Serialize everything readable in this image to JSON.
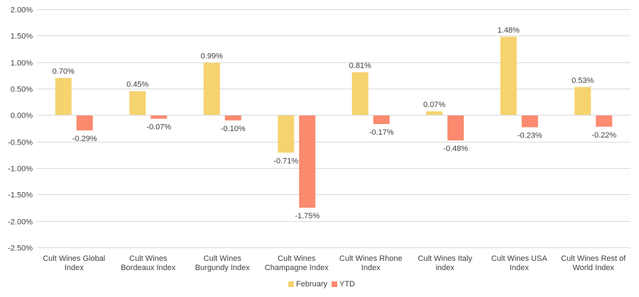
{
  "chart_data": {
    "type": "bar",
    "categories": [
      [
        "Cult Wines Global",
        "Index"
      ],
      [
        "Cult Wines",
        "Bordeaux Index"
      ],
      [
        "Cult Wines",
        "Burgundy Index"
      ],
      [
        "Cult Wines",
        "Champagne Index"
      ],
      [
        "Cult Wines Rhone",
        "Index"
      ],
      [
        "Cult Wines Italy",
        "index"
      ],
      [
        "Cult Wines USA",
        "Index"
      ],
      [
        "Cult Wines Rest of",
        "World Index"
      ]
    ],
    "series": [
      {
        "name": "February",
        "color": "#F5D36E",
        "values": [
          0.7,
          0.45,
          0.99,
          -0.71,
          0.81,
          0.07,
          1.48,
          0.53
        ],
        "labels": [
          "0.70%",
          "0.45%",
          "0.99%",
          "-0.71%",
          "0.81%",
          "0.07%",
          "1.48%",
          "0.53%"
        ]
      },
      {
        "name": "YTD",
        "color": "#FB8A6E",
        "values": [
          -0.29,
          -0.07,
          -0.1,
          -1.75,
          -0.17,
          -0.48,
          -0.23,
          -0.22
        ],
        "labels": [
          "-0.29%",
          "-0.07%",
          "-0.10%",
          "-1.75%",
          "-0.17%",
          "-0.48%",
          "-0.23%",
          "-0.22%"
        ]
      }
    ],
    "ylim": [
      -2.5,
      2.0
    ],
    "yticks": [
      "-2.50%",
      "-2.00%",
      "-1.50%",
      "-1.00%",
      "-0.50%",
      "0.00%",
      "0.50%",
      "1.00%",
      "1.50%",
      "2.00%"
    ],
    "ytick_values": [
      -2.5,
      -2.0,
      -1.5,
      -1.0,
      -0.5,
      0.0,
      0.5,
      1.0,
      1.5,
      2.0
    ],
    "grid": true,
    "legend": "bottom",
    "title": "",
    "xlabel": "",
    "ylabel": ""
  }
}
